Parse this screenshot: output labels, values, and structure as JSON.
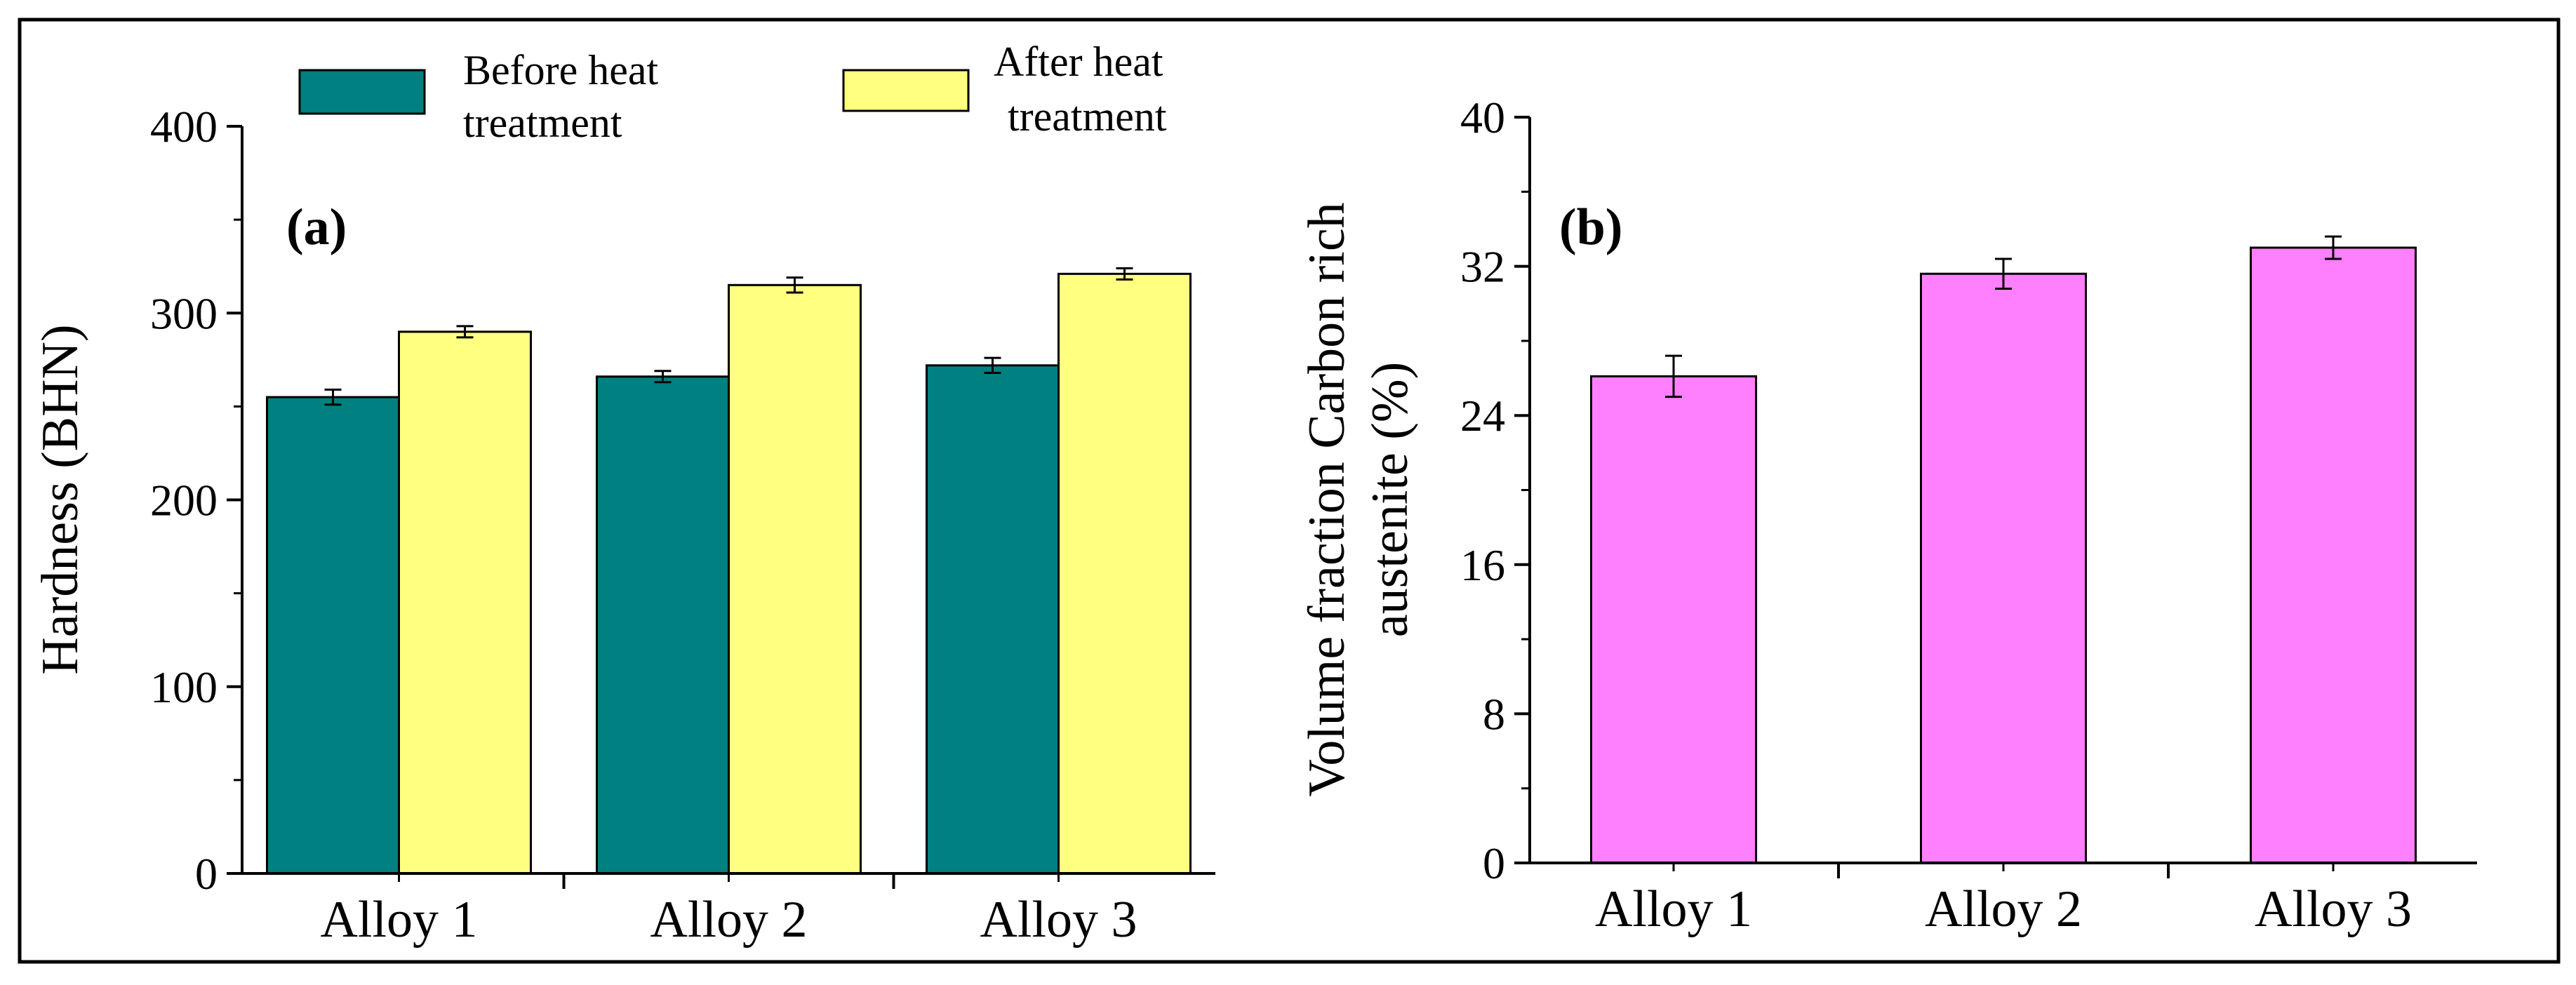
{
  "chart_data": [
    {
      "type": "bar",
      "panel_label": "(a)",
      "categories": [
        "Alloy 1",
        "Alloy 2",
        "Alloy 3"
      ],
      "series": [
        {
          "name": "Before heat treatment",
          "legend_lines": [
            "Before heat",
            "treatment"
          ],
          "color": "#008080",
          "values": [
            255,
            266,
            272
          ],
          "errors": [
            4,
            3,
            4
          ]
        },
        {
          "name": "After heat treatment",
          "legend_lines": [
            "After heat",
            "treatment"
          ],
          "color": "#FFFF80",
          "values": [
            290,
            315,
            321
          ],
          "errors": [
            3,
            4,
            3
          ]
        }
      ],
      "xlabel": "",
      "ylabel": "Hardness  (BHN)",
      "ylim": [
        0,
        400
      ],
      "yticks": [
        0,
        100,
        200,
        300,
        400
      ],
      "legend_position": "top",
      "grid": false
    },
    {
      "type": "bar",
      "panel_label": "(b)",
      "categories": [
        "Alloy 1",
        "Alloy 2",
        "Alloy 3"
      ],
      "series": [
        {
          "color": "#FF80FF",
          "values": [
            26.1,
            31.6,
            33.0
          ],
          "errors": [
            1.1,
            0.8,
            0.6
          ]
        }
      ],
      "xlabel": "",
      "ylabel_lines": [
        "Volume fraction Carbon rich",
        "austenite (%)"
      ],
      "ylim": [
        0,
        40
      ],
      "yticks": [
        0,
        8,
        16,
        24,
        32,
        40
      ],
      "grid": false
    }
  ]
}
